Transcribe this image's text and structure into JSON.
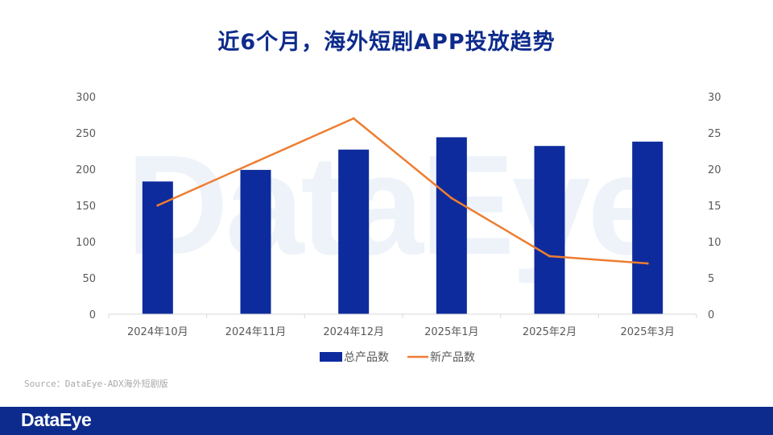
{
  "page": {
    "title": "近6个月，海外短剧APP投放趋势",
    "watermark": "DataEye",
    "source": "Source：DataEye-ADX海外短剧版",
    "footer_logo": "DataEye"
  },
  "colors": {
    "bar": "#0d2b9c",
    "line": "#ed7d31",
    "axis_text": "#595959",
    "title": "#0d2b8c",
    "footer": "#0d2b8c"
  },
  "chart_data": {
    "type": "bar+line",
    "categories": [
      "2024年10月",
      "2024年11月",
      "2024年12月",
      "2025年1月",
      "2025年2月",
      "2025年3月"
    ],
    "series": [
      {
        "name": "总产品数",
        "type": "bar",
        "axis": "left",
        "values": [
          183,
          199,
          227,
          244,
          232,
          238
        ]
      },
      {
        "name": "新产品数",
        "type": "line",
        "axis": "right",
        "values": [
          15,
          21,
          27,
          16,
          8,
          7
        ]
      }
    ],
    "y_left": {
      "min": 0,
      "max": 300,
      "ticks": [
        "0",
        "50",
        "100",
        "150",
        "200",
        "250",
        "300"
      ]
    },
    "y_right": {
      "min": 0,
      "max": 30,
      "ticks": [
        "0",
        "5",
        "10",
        "15",
        "20",
        "25",
        "30"
      ]
    },
    "legend": {
      "position": "bottom-center"
    },
    "grid": false
  }
}
